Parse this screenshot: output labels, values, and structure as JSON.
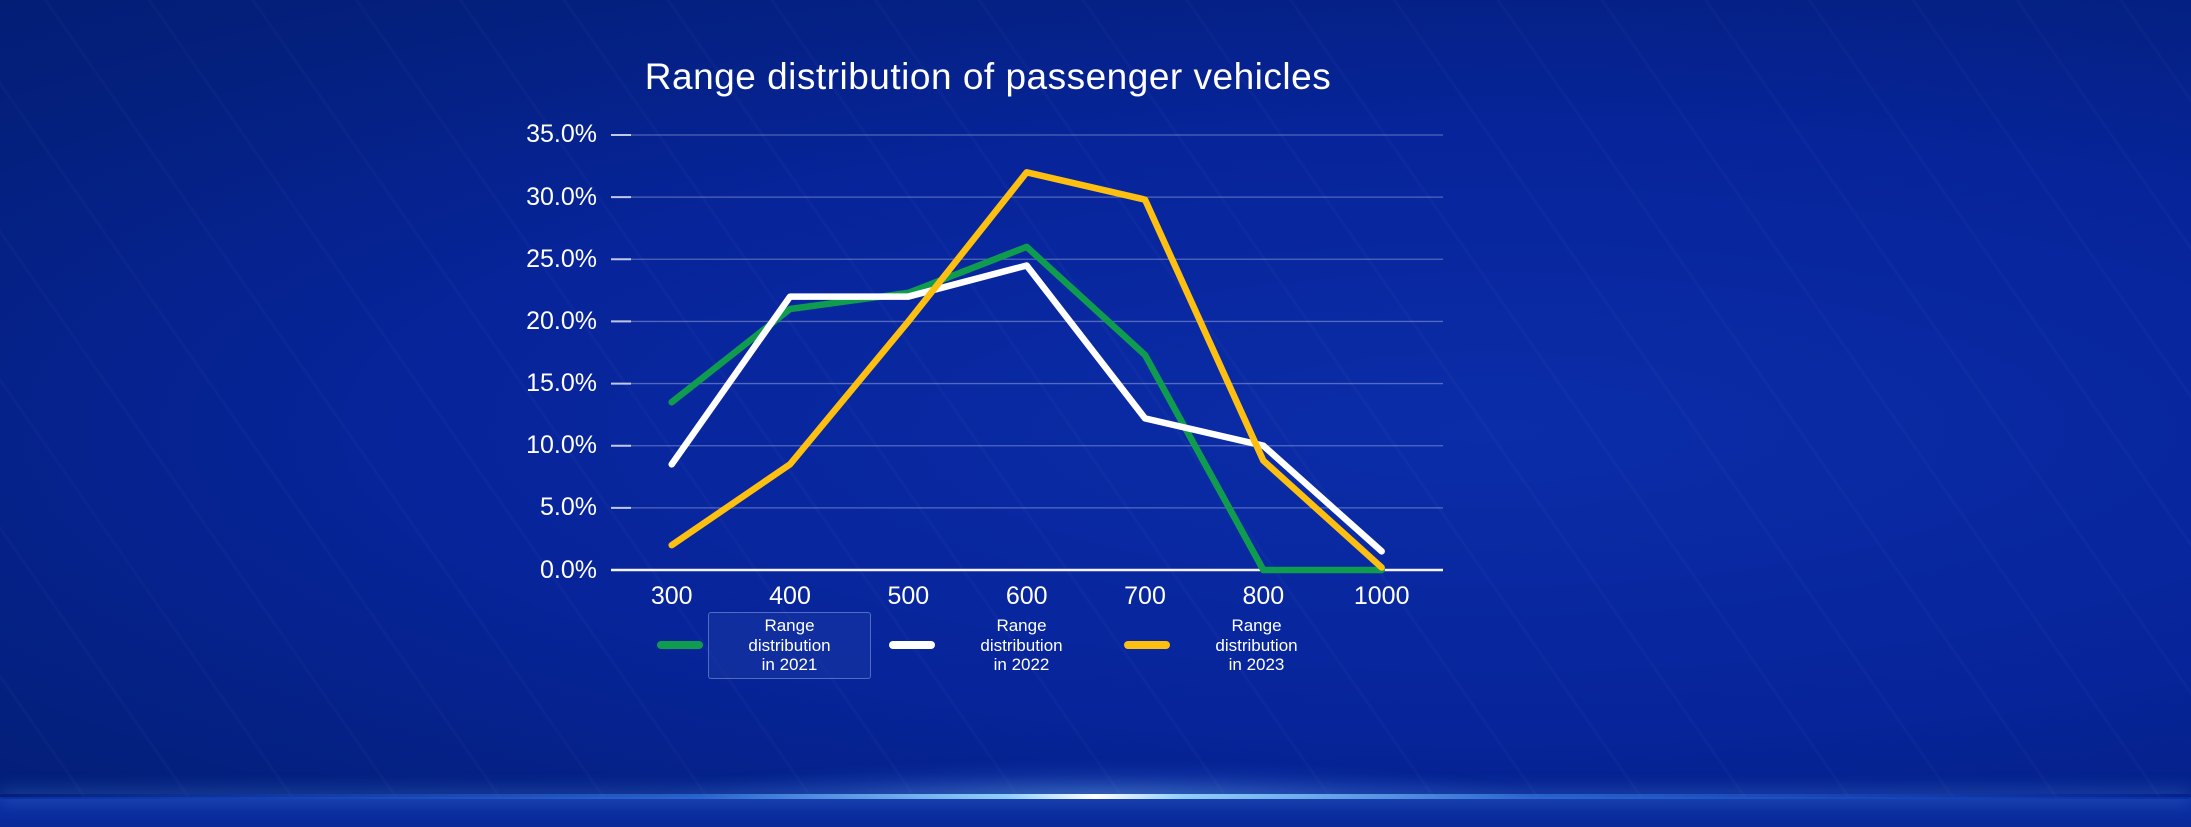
{
  "page": {
    "title": "Range distribution of passenger vehicles"
  },
  "chart_data": {
    "type": "line",
    "title": "Range distribution of passenger vehicles",
    "categories": [
      300,
      400,
      500,
      600,
      700,
      800,
      1000
    ],
    "x_tick_labels": [
      "300",
      "400",
      "500",
      "600",
      "700",
      "800",
      "1000"
    ],
    "y_tick_labels": [
      "35.0%",
      "30.0%",
      "25.0%",
      "20.0%",
      "15.0%",
      "10.0%",
      "5.0%",
      "0.0%"
    ],
    "ylim": [
      0,
      35
    ],
    "y_tick_step": 5,
    "grid": true,
    "legend_position": "bottom-center",
    "series": [
      {
        "name": "Range distribution in 2021",
        "legend_lines": [
          "Range",
          "distribution",
          "in 2021"
        ],
        "color": "#109C4F",
        "values": [
          13.5,
          21.0,
          22.3,
          26.0,
          17.3,
          0.0,
          0.0
        ]
      },
      {
        "name": "Range distribution in 2022",
        "legend_lines": [
          "Range",
          "distribution",
          "in 2022"
        ],
        "color": "#FFFFFF",
        "values": [
          8.5,
          22.0,
          22.0,
          24.5,
          12.2,
          10.0,
          1.5
        ]
      },
      {
        "name": "Range distribution in 2023",
        "legend_lines": [
          "Range",
          "distribution",
          "in 2023"
        ],
        "color": "#FDBF10",
        "values": [
          2.0,
          8.5,
          20.0,
          32.0,
          29.8,
          8.8,
          0.2
        ]
      }
    ]
  },
  "style": {
    "background_dark": "#001A63",
    "background_bright": "#0B2DA8",
    "grid_color": "rgba(255,255,255,0.30)",
    "axis_color": "rgba(255,255,255,0.95)",
    "text_color": "#FFFFFF",
    "green": "#109C4F",
    "white_line": "#FFFFFF",
    "yellow": "#FDBF10"
  }
}
